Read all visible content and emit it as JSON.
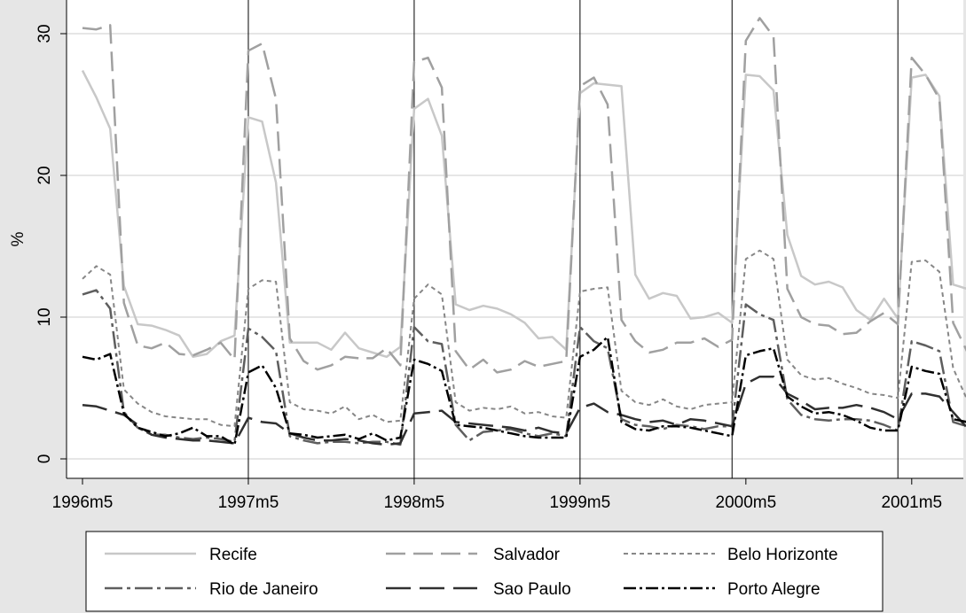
{
  "chart_data": {
    "type": "line",
    "title": "",
    "xlabel": "",
    "ylabel": "%",
    "ylim": [
      -1.5,
      32.3
    ],
    "yticks": [
      0,
      10,
      20,
      30
    ],
    "grid": true,
    "legend_position": "bottom",
    "x_tick_labels": [
      "1996m5",
      "1997m5",
      "1998m5",
      "1999m5",
      "2000m5",
      "2001m5"
    ],
    "x_tick_index": [
      0,
      12,
      24,
      36,
      48,
      60
    ],
    "vertical_lines_index": [
      12,
      24,
      36,
      47,
      59
    ],
    "series": [
      {
        "name": "Recife",
        "color": "#c8c8c8",
        "dash": "solid",
        "width": 2.5,
        "values": [
          27.4,
          25.5,
          23.3,
          12.2,
          9.5,
          9.4,
          9.1,
          8.7,
          7.2,
          7.4,
          8.3,
          8.7,
          24.1,
          23.8,
          19.5,
          8.2,
          8.2,
          8.2,
          7.7,
          8.9,
          7.8,
          7.5,
          7.2,
          7.9,
          24.7,
          25.4,
          22.8,
          10.9,
          10.5,
          10.8,
          10.6,
          10.2,
          9.6,
          8.5,
          8.6,
          7.7,
          25.8,
          26.5,
          26.4,
          26.3,
          13.0,
          11.3,
          11.7,
          11.5,
          9.9,
          10.0,
          10.3,
          9.6,
          27.1,
          27.0,
          26.0,
          15.8,
          12.9,
          12.3,
          12.5,
          12.1,
          10.5,
          9.8,
          11.3,
          9.9,
          26.9,
          27.1,
          25.6,
          12.3,
          12.0
        ]
      },
      {
        "name": "Salvador",
        "color": "#a0a0a0",
        "dash": "22 9",
        "width": 2.5,
        "values": [
          30.4,
          30.3,
          30.6,
          11.0,
          8.0,
          7.8,
          8.2,
          7.4,
          7.3,
          7.7,
          8.2,
          7.0,
          28.8,
          29.3,
          25.4,
          8.5,
          6.9,
          6.3,
          6.6,
          7.2,
          7.1,
          7.1,
          7.8,
          6.6,
          28.0,
          28.3,
          26.2,
          7.6,
          6.3,
          7.0,
          6.1,
          6.3,
          6.9,
          6.5,
          6.7,
          6.9,
          26.3,
          26.9,
          25.0,
          9.8,
          8.3,
          7.5,
          7.7,
          8.2,
          8.2,
          8.5,
          7.9,
          8.4,
          29.5,
          31.1,
          29.8,
          12.0,
          10.0,
          9.5,
          9.4,
          8.8,
          8.9,
          9.7,
          10.3,
          9.5,
          28.3,
          27.1,
          25.4,
          9.6,
          7.6
        ]
      },
      {
        "name": "Belo Horizonte",
        "color": "#878787",
        "dash": "5 4",
        "width": 2,
        "values": [
          12.7,
          13.6,
          13.0,
          4.9,
          3.9,
          3.3,
          3.0,
          2.9,
          2.8,
          2.8,
          2.4,
          2.3,
          12.0,
          12.6,
          12.5,
          4.0,
          3.5,
          3.4,
          3.2,
          3.7,
          2.8,
          3.1,
          2.6,
          2.7,
          11.3,
          12.3,
          11.6,
          4.0,
          3.4,
          3.6,
          3.5,
          3.7,
          3.2,
          3.3,
          3.0,
          2.9,
          11.8,
          12.0,
          12.1,
          4.8,
          4.0,
          3.8,
          4.2,
          3.7,
          3.5,
          3.8,
          3.9,
          4.0,
          14.1,
          14.7,
          14.1,
          7.0,
          5.9,
          5.6,
          5.7,
          5.3,
          5.0,
          4.6,
          4.5,
          4.3,
          13.9,
          14.0,
          13.2,
          6.4,
          4.2
        ]
      },
      {
        "name": "Rio de Janeiro",
        "color": "#5e5e5e",
        "dash": "20 5 4 5",
        "width": 2.5,
        "values": [
          11.6,
          11.9,
          10.6,
          3.3,
          2.2,
          1.7,
          1.7,
          1.5,
          1.4,
          1.5,
          1.4,
          1.2,
          9.2,
          8.6,
          7.6,
          1.6,
          1.3,
          1.1,
          1.2,
          1.2,
          1.1,
          1.2,
          1.2,
          1.0,
          9.3,
          8.3,
          8.1,
          2.4,
          1.3,
          1.9,
          2.0,
          2.1,
          1.8,
          1.6,
          1.8,
          1.6,
          9.3,
          8.3,
          7.8,
          2.8,
          2.4,
          2.3,
          2.1,
          2.4,
          2.3,
          2.1,
          2.3,
          2.3,
          10.9,
          10.2,
          9.8,
          4.2,
          3.1,
          2.8,
          2.7,
          2.8,
          2.8,
          2.7,
          2.4,
          2.0,
          8.3,
          8.0,
          7.6,
          2.6,
          2.3
        ]
      },
      {
        "name": "Sao Paulo",
        "color": "#303030",
        "dash": "28 10",
        "width": 2.5,
        "values": [
          3.8,
          3.7,
          3.4,
          3.1,
          2.4,
          1.7,
          1.5,
          1.4,
          1.3,
          1.3,
          1.2,
          1.1,
          2.9,
          2.6,
          2.5,
          1.8,
          1.5,
          1.3,
          1.3,
          1.4,
          1.3,
          1.1,
          1.0,
          1.1,
          3.2,
          3.3,
          3.4,
          2.6,
          2.5,
          2.4,
          2.3,
          2.2,
          2.0,
          2.2,
          1.9,
          1.8,
          3.6,
          3.9,
          3.3,
          3.1,
          2.8,
          2.6,
          2.7,
          2.4,
          2.8,
          2.7,
          2.5,
          2.3,
          5.3,
          5.8,
          5.8,
          4.6,
          4.1,
          3.5,
          3.6,
          3.6,
          3.8,
          3.6,
          3.3,
          2.8,
          4.6,
          4.6,
          4.4,
          3.3,
          2.2
        ]
      },
      {
        "name": "Porto Alegre",
        "color": "#000000",
        "dash": "14 4 3 4",
        "width": 2.5,
        "values": [
          7.2,
          7.0,
          7.4,
          3.2,
          2.2,
          1.9,
          1.6,
          1.8,
          2.2,
          1.6,
          1.6,
          1.0,
          6.1,
          6.6,
          5.0,
          1.8,
          1.7,
          1.5,
          1.6,
          1.7,
          1.4,
          1.8,
          1.3,
          1.5,
          7.0,
          6.7,
          6.2,
          2.4,
          2.3,
          2.2,
          2.0,
          1.8,
          1.6,
          1.5,
          1.5,
          1.5,
          7.2,
          7.7,
          8.6,
          2.6,
          2.1,
          2.0,
          2.3,
          2.3,
          2.2,
          2.0,
          1.8,
          1.6,
          7.3,
          7.6,
          7.8,
          4.4,
          3.7,
          3.2,
          3.3,
          3.1,
          2.7,
          2.2,
          2.0,
          2.0,
          6.5,
          6.2,
          6.0,
          2.8,
          2.6
        ]
      }
    ]
  }
}
